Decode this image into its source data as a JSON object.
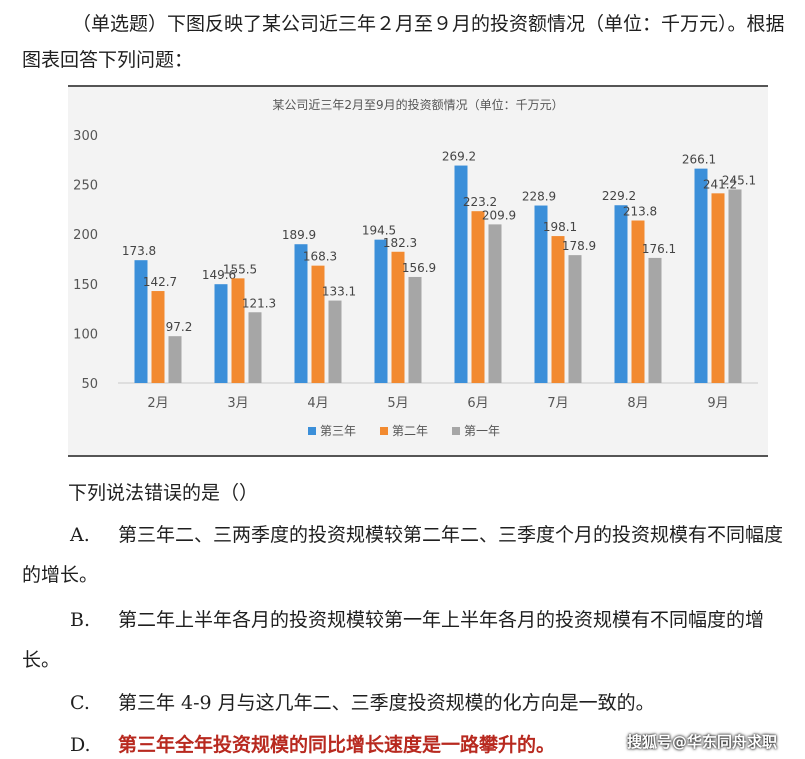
{
  "question": {
    "intro": "（单选题）下图反映了某公司近三年２月至９月的投资额情况（单位：千万元）。根据图表回答下列问题："
  },
  "chart_data": {
    "type": "bar",
    "title": "某公司近三年2月至9月的投资额情况（单位：千万元）",
    "categories": [
      "2月",
      "3月",
      "4月",
      "5月",
      "6月",
      "7月",
      "8月",
      "9月"
    ],
    "ylim": [
      50,
      300
    ],
    "yticks": [
      "50",
      "100",
      "150",
      "200",
      "250",
      "300"
    ],
    "legend_position": "bottom",
    "series": [
      {
        "name": "第三年",
        "color": "#3b8fd9",
        "values": [
          173.8,
          149.6,
          189.9,
          194.5,
          269.2,
          228.9,
          229.2,
          266.1
        ]
      },
      {
        "name": "第二年",
        "color": "#f28a30",
        "values": [
          142.7,
          155.5,
          168.3,
          182.3,
          223.2,
          198.1,
          213.8,
          241.2
        ]
      },
      {
        "name": "第一年",
        "color": "#a6a6a6",
        "values": [
          97.2,
          121.3,
          133.1,
          156.9,
          209.9,
          178.9,
          176.1,
          245.1
        ]
      }
    ]
  },
  "sub_question": "下列说法错误的是（）",
  "options": [
    {
      "key": "A.",
      "text": "第三年二、三两季度的投资规模较第二年二、三季度个月的投资规模有不同幅度的增长。"
    },
    {
      "key": "B.",
      "text": "第二年上半年各月的投资规模较第一年上半年各月的投资规模有不同幅度的增长。"
    },
    {
      "key": "C.",
      "text": "第三年 4-9 月与这几年二、三季度投资规模的化方向是一致的。"
    },
    {
      "key": "D.",
      "text": "第三年全年投资规模的同比增长速度是一路攀升的。"
    }
  ],
  "watermark": "搜狐号@华东同舟求职"
}
